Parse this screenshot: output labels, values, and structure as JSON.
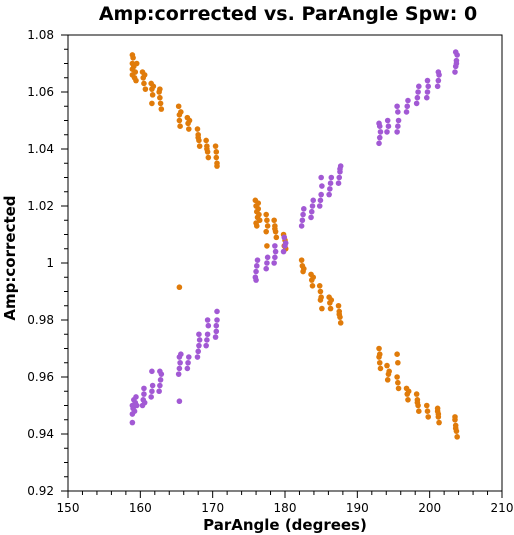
{
  "chart_data": {
    "type": "scatter",
    "title": "Amp:corrected vs. ParAngle Spw: 0",
    "xlabel": "ParAngle (degrees)",
    "ylabel": "Amp:corrected",
    "xlim": [
      150,
      210
    ],
    "ylim": [
      0.92,
      1.08
    ],
    "x_ticks": [
      "150",
      "160",
      "170",
      "180",
      "190",
      "200",
      "210"
    ],
    "y_ticks": [
      "0.92",
      "0.94",
      "0.96",
      "0.98",
      "1",
      "1.02",
      "1.04",
      "1.06",
      "1.08"
    ],
    "grid": false,
    "legend": "none",
    "series": [
      {
        "color": "#e07b0a",
        "points": [
          [
            158.9,
            1.073
          ],
          [
            158.9,
            1.07
          ],
          [
            158.9,
            1.068
          ],
          [
            158.9,
            1.066
          ],
          [
            159.0,
            1.072
          ],
          [
            159.1,
            1.069
          ],
          [
            159.2,
            1.065
          ],
          [
            159.3,
            1.067
          ],
          [
            159.4,
            1.064
          ],
          [
            159.5,
            1.07
          ],
          [
            160.3,
            1.067
          ],
          [
            160.4,
            1.065
          ],
          [
            160.5,
            1.063
          ],
          [
            160.6,
            1.066
          ],
          [
            160.7,
            1.061
          ],
          [
            161.5,
            1.063
          ],
          [
            161.6,
            1.061
          ],
          [
            161.7,
            1.059
          ],
          [
            161.8,
            1.062
          ],
          [
            161.6,
            1.056
          ],
          [
            162.6,
            1.06
          ],
          [
            162.7,
            1.058
          ],
          [
            162.8,
            1.056
          ],
          [
            162.9,
            1.054
          ],
          [
            162.7,
            1.061
          ],
          [
            165.3,
            1.055
          ],
          [
            165.4,
            1.052
          ],
          [
            165.4,
            1.05
          ],
          [
            165.5,
            1.048
          ],
          [
            165.6,
            1.053
          ],
          [
            166.5,
            1.051
          ],
          [
            166.6,
            1.049
          ],
          [
            166.7,
            1.047
          ],
          [
            166.8,
            1.05
          ],
          [
            165.4,
            0.9915
          ],
          [
            167.9,
            1.047
          ],
          [
            168.0,
            1.045
          ],
          [
            168.1,
            1.043
          ],
          [
            168.2,
            1.041
          ],
          [
            168.0,
            1.044
          ],
          [
            169.1,
            1.043
          ],
          [
            169.2,
            1.041
          ],
          [
            169.3,
            1.039
          ],
          [
            169.4,
            1.037
          ],
          [
            169.2,
            1.04
          ],
          [
            170.4,
            1.041
          ],
          [
            170.5,
            1.039
          ],
          [
            170.5,
            1.037
          ],
          [
            170.6,
            1.035
          ],
          [
            170.6,
            1.034
          ],
          [
            175.9,
            1.022
          ],
          [
            176.0,
            1.02
          ],
          [
            176.1,
            1.018
          ],
          [
            176.2,
            1.016
          ],
          [
            176.0,
            1.014
          ],
          [
            176.3,
            1.021
          ],
          [
            176.4,
            1.017
          ],
          [
            176.5,
            1.015
          ],
          [
            176.3,
            1.019
          ],
          [
            176.1,
            1.013
          ],
          [
            177.4,
            1.017
          ],
          [
            177.5,
            1.015
          ],
          [
            177.6,
            1.013
          ],
          [
            177.4,
            1.011
          ],
          [
            177.5,
            1.006
          ],
          [
            178.5,
            1.015
          ],
          [
            178.6,
            1.013
          ],
          [
            178.7,
            1.011
          ],
          [
            178.8,
            1.009
          ],
          [
            178.6,
            1.012
          ],
          [
            179.8,
            1.01
          ],
          [
            180.0,
            1.008
          ],
          [
            179.9,
            1.006
          ],
          [
            180.1,
            1.005
          ],
          [
            182.3,
            1.001
          ],
          [
            182.4,
            0.999
          ],
          [
            182.5,
            0.997
          ],
          [
            182.6,
            0.998
          ],
          [
            183.6,
            0.996
          ],
          [
            183.7,
            0.994
          ],
          [
            183.8,
            0.992
          ],
          [
            183.9,
            0.995
          ],
          [
            184.8,
            0.992
          ],
          [
            184.9,
            0.99
          ],
          [
            185.0,
            0.988
          ],
          [
            185.1,
            0.984
          ],
          [
            184.9,
            0.987
          ],
          [
            186.1,
            0.988
          ],
          [
            186.2,
            0.986
          ],
          [
            186.3,
            0.984
          ],
          [
            186.4,
            0.987
          ],
          [
            187.4,
            0.985
          ],
          [
            187.5,
            0.983
          ],
          [
            187.6,
            0.981
          ],
          [
            187.7,
            0.979
          ],
          [
            187.5,
            0.982
          ],
          [
            193.0,
            0.967
          ],
          [
            193.1,
            0.965
          ],
          [
            193.2,
            0.963
          ],
          [
            193.0,
            0.97
          ],
          [
            193.1,
            0.968
          ],
          [
            194.1,
            0.964
          ],
          [
            194.3,
            0.961
          ],
          [
            194.2,
            0.959
          ],
          [
            194.4,
            0.962
          ],
          [
            195.5,
            0.96
          ],
          [
            195.6,
            0.958
          ],
          [
            195.7,
            0.956
          ],
          [
            195.5,
            0.968
          ],
          [
            195.6,
            0.965
          ],
          [
            196.8,
            0.956
          ],
          [
            196.9,
            0.954
          ],
          [
            197.0,
            0.952
          ],
          [
            197.1,
            0.955
          ],
          [
            198.2,
            0.954
          ],
          [
            198.3,
            0.952
          ],
          [
            198.4,
            0.95
          ],
          [
            198.5,
            0.948
          ],
          [
            198.3,
            0.951
          ],
          [
            199.6,
            0.95
          ],
          [
            199.7,
            0.948
          ],
          [
            199.8,
            0.946
          ],
          [
            201.1,
            0.948
          ],
          [
            201.2,
            0.946
          ],
          [
            201.3,
            0.944
          ],
          [
            201.2,
            0.947
          ],
          [
            201.1,
            0.949
          ],
          [
            203.5,
            0.945
          ],
          [
            203.6,
            0.943
          ],
          [
            203.7,
            0.941
          ],
          [
            203.8,
            0.939
          ],
          [
            203.6,
            0.942
          ],
          [
            203.5,
            0.946
          ]
        ]
      },
      {
        "color": "#a259d4",
        "points": [
          [
            158.9,
            0.944
          ],
          [
            158.9,
            0.947
          ],
          [
            158.9,
            0.95
          ],
          [
            159.0,
            0.949
          ],
          [
            159.1,
            0.952
          ],
          [
            159.2,
            0.948
          ],
          [
            159.3,
            0.951
          ],
          [
            159.4,
            0.953
          ],
          [
            159.5,
            0.95
          ],
          [
            160.3,
            0.95
          ],
          [
            160.4,
            0.952
          ],
          [
            160.5,
            0.954
          ],
          [
            160.6,
            0.951
          ],
          [
            160.5,
            0.956
          ],
          [
            161.5,
            0.953
          ],
          [
            161.6,
            0.955
          ],
          [
            161.7,
            0.957
          ],
          [
            161.6,
            0.962
          ],
          [
            162.6,
            0.955
          ],
          [
            162.7,
            0.957
          ],
          [
            162.8,
            0.959
          ],
          [
            162.9,
            0.961
          ],
          [
            162.7,
            0.962
          ],
          [
            165.3,
            0.961
          ],
          [
            165.4,
            0.963
          ],
          [
            165.5,
            0.965
          ],
          [
            165.6,
            0.968
          ],
          [
            165.4,
            0.967
          ],
          [
            165.4,
            0.9515
          ],
          [
            166.5,
            0.963
          ],
          [
            166.6,
            0.965
          ],
          [
            166.7,
            0.967
          ],
          [
            167.9,
            0.967
          ],
          [
            168.0,
            0.969
          ],
          [
            168.1,
            0.971
          ],
          [
            168.2,
            0.973
          ],
          [
            168.1,
            0.975
          ],
          [
            169.1,
            0.971
          ],
          [
            169.2,
            0.973
          ],
          [
            169.3,
            0.975
          ],
          [
            169.4,
            0.978
          ],
          [
            169.3,
            0.98
          ],
          [
            170.4,
            0.974
          ],
          [
            170.5,
            0.976
          ],
          [
            170.5,
            0.978
          ],
          [
            170.6,
            0.98
          ],
          [
            170.6,
            0.983
          ],
          [
            175.9,
            0.995
          ],
          [
            176.0,
            0.997
          ],
          [
            176.1,
            0.999
          ],
          [
            176.2,
            1.001
          ],
          [
            176.0,
            0.994
          ],
          [
            177.4,
            0.998
          ],
          [
            177.5,
            1.0
          ],
          [
            177.6,
            1.002
          ],
          [
            178.5,
            1.0
          ],
          [
            178.6,
            1.002
          ],
          [
            178.7,
            1.004
          ],
          [
            178.6,
            1.006
          ],
          [
            179.8,
            1.004
          ],
          [
            180.0,
            1.006
          ],
          [
            180.1,
            1.007
          ],
          [
            179.9,
            1.009
          ],
          [
            182.3,
            1.013
          ],
          [
            182.4,
            1.015
          ],
          [
            182.5,
            1.017
          ],
          [
            182.6,
            1.019
          ],
          [
            183.6,
            1.016
          ],
          [
            183.7,
            1.018
          ],
          [
            183.8,
            1.02
          ],
          [
            183.9,
            1.022
          ],
          [
            184.8,
            1.02
          ],
          [
            184.9,
            1.022
          ],
          [
            185.0,
            1.024
          ],
          [
            185.1,
            1.027
          ],
          [
            185.0,
            1.03
          ],
          [
            186.1,
            1.024
          ],
          [
            186.2,
            1.026
          ],
          [
            186.3,
            1.028
          ],
          [
            186.4,
            1.03
          ],
          [
            187.4,
            1.028
          ],
          [
            187.5,
            1.03
          ],
          [
            187.6,
            1.032
          ],
          [
            187.7,
            1.034
          ],
          [
            187.6,
            1.033
          ],
          [
            193.0,
            1.042
          ],
          [
            193.1,
            1.044
          ],
          [
            193.2,
            1.046
          ],
          [
            193.0,
            1.049
          ],
          [
            193.1,
            1.048
          ],
          [
            194.1,
            1.046
          ],
          [
            194.3,
            1.048
          ],
          [
            194.2,
            1.05
          ],
          [
            195.5,
            1.046
          ],
          [
            195.6,
            1.048
          ],
          [
            195.7,
            1.05
          ],
          [
            195.6,
            1.053
          ],
          [
            195.5,
            1.055
          ],
          [
            196.8,
            1.053
          ],
          [
            196.9,
            1.055
          ],
          [
            197.0,
            1.057
          ],
          [
            198.2,
            1.056
          ],
          [
            198.3,
            1.058
          ],
          [
            198.4,
            1.06
          ],
          [
            198.5,
            1.062
          ],
          [
            199.6,
            1.058
          ],
          [
            199.7,
            1.06
          ],
          [
            199.8,
            1.062
          ],
          [
            199.7,
            1.064
          ],
          [
            201.1,
            1.062
          ],
          [
            201.2,
            1.064
          ],
          [
            201.3,
            1.066
          ],
          [
            201.2,
            1.067
          ],
          [
            203.5,
            1.067
          ],
          [
            203.6,
            1.069
          ],
          [
            203.7,
            1.071
          ],
          [
            203.8,
            1.073
          ],
          [
            203.6,
            1.074
          ],
          [
            203.7,
            1.07
          ]
        ]
      }
    ]
  }
}
